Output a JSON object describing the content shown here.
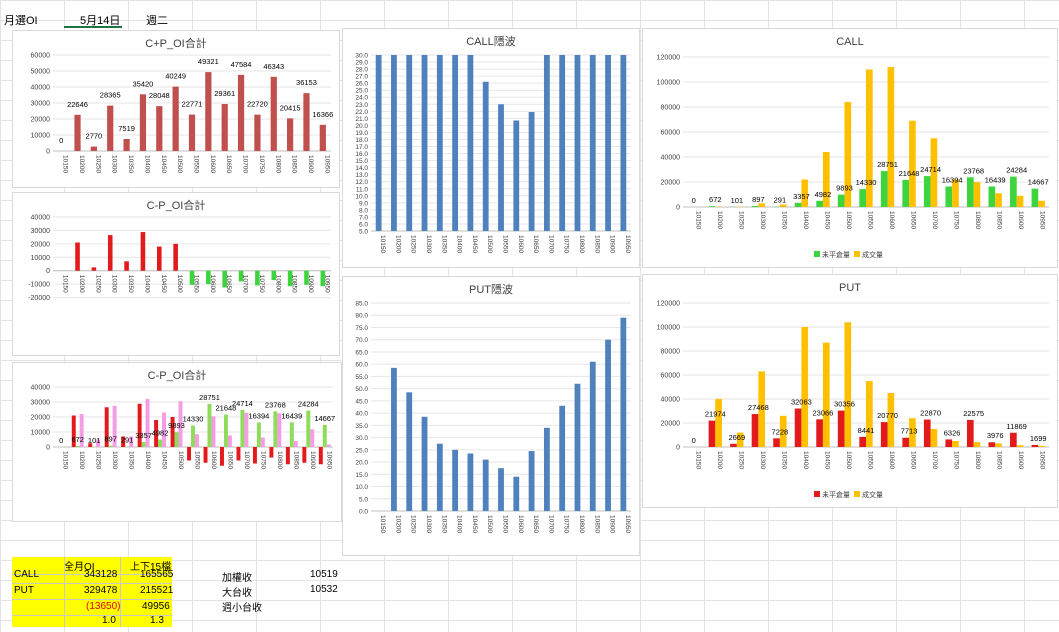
{
  "sheet": {
    "tab_label": "月選OI",
    "date": "5月14日",
    "weekday": "週二"
  },
  "colors": {
    "red_bar": "#c0504d",
    "bright_red": "#e31a1c",
    "green": "#3ed43e",
    "blue": "#4f81bd",
    "yellow": "#ffc000",
    "pink": "#f49ce4",
    "lightgreen": "#8fdc5a"
  },
  "chart_data": [
    {
      "id": "cp_sum",
      "type": "bar",
      "title": "C+P_OI合計",
      "categories": [
        "10150",
        "10200",
        "10250",
        "10300",
        "10350",
        "10400",
        "10450",
        "10500",
        "10550",
        "10600",
        "10650",
        "10700",
        "10750",
        "10800",
        "10850",
        "10900",
        "10950"
      ],
      "values": [
        0,
        22646,
        2770,
        28365,
        7519,
        35420,
        28048,
        40249,
        22771,
        49321,
        29361,
        47584,
        22720,
        46343,
        20415,
        36153,
        16366
      ],
      "ylim": [
        0,
        60000
      ],
      "yticks": [
        0,
        10000,
        20000,
        30000,
        40000,
        50000,
        60000
      ]
    },
    {
      "id": "cp_diff",
      "type": "bar",
      "title": "C-P_OI合計",
      "categories": [
        "10150",
        "10200",
        "10250",
        "10300",
        "10350",
        "10400",
        "10450",
        "10500",
        "10550",
        "10600",
        "10650",
        "10700",
        "10750",
        "10800",
        "10850",
        "10900",
        "10950"
      ],
      "values": [
        0,
        21000,
        2500,
        26500,
        7000,
        28800,
        18000,
        20000,
        -10500,
        -10000,
        -12500,
        -8000,
        -11000,
        -7000,
        -11500,
        -10500,
        -11500
      ],
      "ylim": [
        -30000,
        40000
      ],
      "yticks": [
        -20000,
        -10000,
        0,
        10000,
        20000,
        30000,
        40000
      ]
    },
    {
      "id": "cp_combo",
      "type": "bar",
      "title": "C-P_OI合計",
      "categories": [
        "10150",
        "10200",
        "10250",
        "10300",
        "10350",
        "10400",
        "10450",
        "10500",
        "10550",
        "10600",
        "10650",
        "10700",
        "10750",
        "10800",
        "10850",
        "10900",
        "10950"
      ],
      "series": [
        {
          "values": [
            0,
            21000,
            2500,
            26500,
            7000,
            28800,
            18000,
            20000,
            -9000,
            -10500,
            -12500,
            -9000,
            -11000,
            -7000,
            -11500,
            -10500,
            -11500
          ]
        },
        {
          "values": [
            0,
            672,
            101,
            897,
            291,
            3357,
            4982,
            9893,
            14330,
            28751,
            21648,
            24714,
            16394,
            23768,
            16439,
            24284,
            14667
          ]
        },
        {
          "values": [
            0,
            22000,
            5000,
            27500,
            7000,
            32000,
            23000,
            30500,
            8500,
            20500,
            7700,
            22800,
            6300,
            22500,
            4000,
            11800,
            1700
          ]
        }
      ],
      "labels": [
        "0",
        "672",
        "101",
        "897",
        "291",
        "3357",
        "4982",
        "9893",
        "14330",
        "28751",
        "21648",
        "24714",
        "16394",
        "23768",
        "16439",
        "24284",
        "14667"
      ],
      "ylim": [
        -20000,
        40000
      ],
      "yticks": [
        0,
        10000,
        20000,
        30000,
        40000
      ]
    },
    {
      "id": "call_iv",
      "type": "bar",
      "title": "CALL隱波",
      "categories": [
        "10150",
        "10200",
        "10250",
        "10300",
        "10350",
        "10400",
        "10450",
        "10500",
        "10550",
        "10600",
        "10650",
        "10700",
        "10750",
        "10800",
        "10850",
        "10900",
        "10950"
      ],
      "values": [
        30,
        30,
        30,
        30,
        30,
        30,
        30,
        26.2,
        23.0,
        20.7,
        21.9,
        30,
        30,
        30,
        30,
        30,
        30
      ],
      "ylim": [
        5,
        30
      ],
      "yticks": [
        5,
        6,
        7,
        8,
        9,
        10,
        11,
        12,
        13,
        14,
        15,
        16,
        17,
        18,
        19,
        20,
        21,
        22,
        23,
        24,
        25,
        26,
        27,
        28,
        29,
        30
      ]
    },
    {
      "id": "put_iv",
      "type": "bar",
      "title": "PUT隱波",
      "categories": [
        "10150",
        "10200",
        "10250",
        "10300",
        "10350",
        "10400",
        "10450",
        "10500",
        "10550",
        "10600",
        "10650",
        "10700",
        "10750",
        "10800",
        "10850",
        "10900",
        "10950"
      ],
      "values": [
        0,
        58.5,
        48.5,
        38.5,
        27.5,
        25,
        23.5,
        21,
        17.5,
        14,
        24.5,
        34,
        43,
        52,
        61,
        70,
        79
      ],
      "ylim": [
        0,
        85
      ],
      "yticks": [
        0,
        5,
        10,
        15,
        20,
        25,
        30,
        35,
        40,
        45,
        50,
        55,
        60,
        65,
        70,
        75,
        80,
        85
      ]
    },
    {
      "id": "call_oi",
      "type": "bar",
      "title": "CALL",
      "categories": [
        "10150",
        "10200",
        "10250",
        "10300",
        "10350",
        "10400",
        "10450",
        "10500",
        "10550",
        "10600",
        "10650",
        "10700",
        "10750",
        "10800",
        "10850",
        "10900",
        "10950"
      ],
      "series": [
        {
          "name": "未平倉量",
          "values": [
            0,
            672,
            101,
            897,
            291,
            3357,
            4982,
            9893,
            14330,
            28751,
            21648,
            24714,
            16394,
            23768,
            16439,
            24284,
            14667
          ]
        },
        {
          "name": "成交量",
          "values": [
            0,
            400,
            300,
            3000,
            2000,
            22000,
            44000,
            84000,
            110000,
            112000,
            69000,
            55000,
            22000,
            20000,
            11000,
            9000,
            5000
          ]
        }
      ],
      "labels": [
        "0",
        "672",
        "101",
        "897",
        "291",
        "3357",
        "4982",
        "9893",
        "14330",
        "28751",
        "21648",
        "24714",
        "16394",
        "23768",
        "16439",
        "24284",
        "14667"
      ],
      "ylim": [
        0,
        120000
      ],
      "yticks": [
        0,
        20000,
        40000,
        60000,
        80000,
        100000,
        120000
      ],
      "legend": "bottom"
    },
    {
      "id": "put_oi",
      "type": "bar",
      "title": "PUT",
      "categories": [
        "10150",
        "10200",
        "10250",
        "10300",
        "10350",
        "10400",
        "10450",
        "10500",
        "10550",
        "10600",
        "10650",
        "10700",
        "10750",
        "10800",
        "10850",
        "10900",
        "10950"
      ],
      "series": [
        {
          "name": "未平倉量",
          "values": [
            0,
            21974,
            2669,
            27468,
            7228,
            32063,
            23066,
            30356,
            8441,
            20770,
            7713,
            22870,
            6326,
            22575,
            3976,
            11869,
            1699
          ]
        },
        {
          "name": "成交量",
          "values": [
            0,
            40000,
            12000,
            63000,
            26000,
            100000,
            87000,
            104000,
            55000,
            45000,
            24000,
            15000,
            5000,
            4000,
            3000,
            1500,
            1000
          ]
        }
      ],
      "labels": [
        "0",
        "21974",
        "2669",
        "27468",
        "7228",
        "32063",
        "23066",
        "30356",
        "8441",
        "20770",
        "7713",
        "22870",
        "6326",
        "22575",
        "3976",
        "11869",
        "1699"
      ],
      "ylim": [
        0,
        120000
      ],
      "yticks": [
        0,
        20000,
        40000,
        60000,
        80000,
        100000,
        120000
      ],
      "legend": "bottom"
    }
  ],
  "summary": {
    "head": [
      "全月OI",
      "上下15檔"
    ],
    "rows": [
      {
        "label": "CALL",
        "a": "343128",
        "b": "165565"
      },
      {
        "label": "PUT",
        "a": "329478",
        "b": "215521"
      },
      {
        "label": "",
        "a": "(13650)",
        "b": "49956"
      },
      {
        "label": "",
        "a": "1.0",
        "b": "1.3"
      }
    ]
  },
  "close": [
    {
      "label": "加權收",
      "value": "10519"
    },
    {
      "label": "大台收",
      "value": "10532"
    },
    {
      "label": "週小台收",
      "value": ""
    }
  ]
}
